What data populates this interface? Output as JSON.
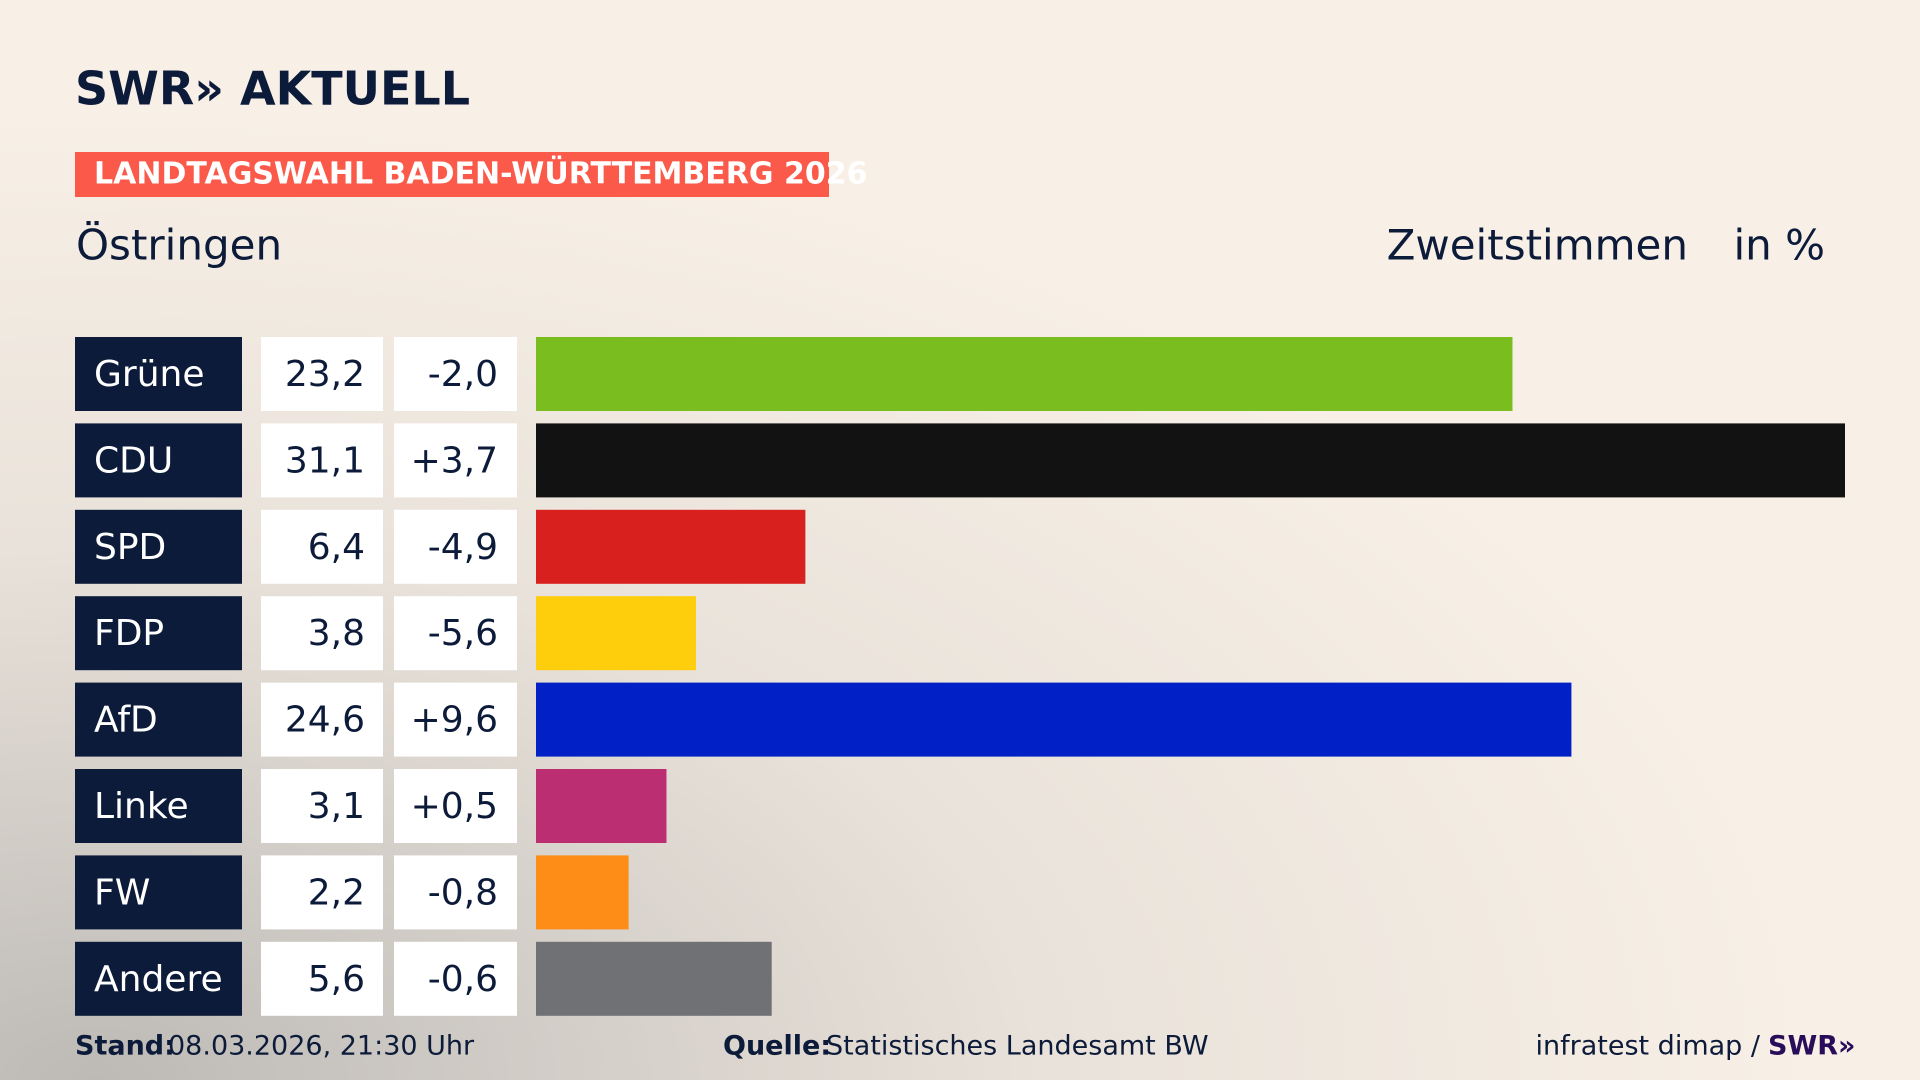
{
  "brand": "SWR» AKTUELL",
  "chart_data": {
    "type": "bar",
    "title": "LANDTAGSWAHL BADEN-WÜRTTEMBERG 2026",
    "subtitle": "Östringen",
    "measure": "Zweitstimmen",
    "unit": "in %",
    "categories": [
      "Grüne",
      "CDU",
      "SPD",
      "FDP",
      "AfD",
      "Linke",
      "FW",
      "Andere"
    ],
    "values": [
      23.2,
      31.1,
      6.4,
      3.8,
      24.6,
      3.1,
      2.2,
      5.6
    ],
    "value_labels": [
      "23,2",
      "31,1",
      "6,4",
      "3,8",
      "24,6",
      "3,1",
      "2,2",
      "5,6"
    ],
    "changes": [
      -2.0,
      3.7,
      -4.9,
      -5.6,
      9.6,
      0.5,
      -0.8,
      -0.6
    ],
    "change_labels": [
      "-2,0",
      "+3,7",
      "-4,9",
      "-5,6",
      "+9,6",
      "+0,5",
      "-0,8",
      "-0,6"
    ],
    "colors": [
      "#7abd1e",
      "#121212",
      "#d8211f",
      "#fecd0b",
      "#0121c6",
      "#bb2f72",
      "#fd8d16",
      "#707174"
    ]
  },
  "footer": {
    "date_label": "Stand:",
    "date": "08.03.2026, 21:30 Uhr",
    "source_label": "Quelle:",
    "source": "Statistisches Landesamt BW",
    "institute": "infratest dimap /",
    "brand": "SWR»"
  }
}
